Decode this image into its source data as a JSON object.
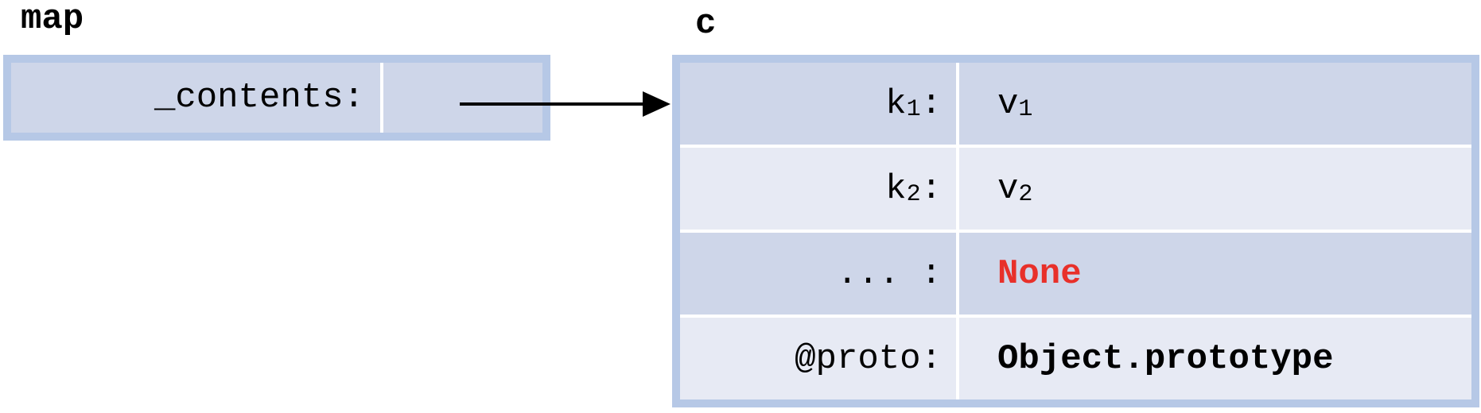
{
  "map": {
    "title": "map",
    "field_label": "_contents:"
  },
  "c": {
    "title": "c",
    "rows": [
      {
        "key": "k",
        "key_sub": "1",
        "sep": ":",
        "value": "v",
        "value_sub": "1"
      },
      {
        "key": "k",
        "key_sub": "2",
        "sep": ":",
        "value": "v",
        "value_sub": "2"
      },
      {
        "key": "... :",
        "value": "None"
      },
      {
        "key": "@proto:",
        "value": "Object.prototype"
      }
    ]
  },
  "colors": {
    "frame": "#b6c8e6",
    "row_dark": "#ced6e9",
    "row_light": "#e7eaf4",
    "none_value": "#e8302a",
    "arrow": "#000000"
  }
}
